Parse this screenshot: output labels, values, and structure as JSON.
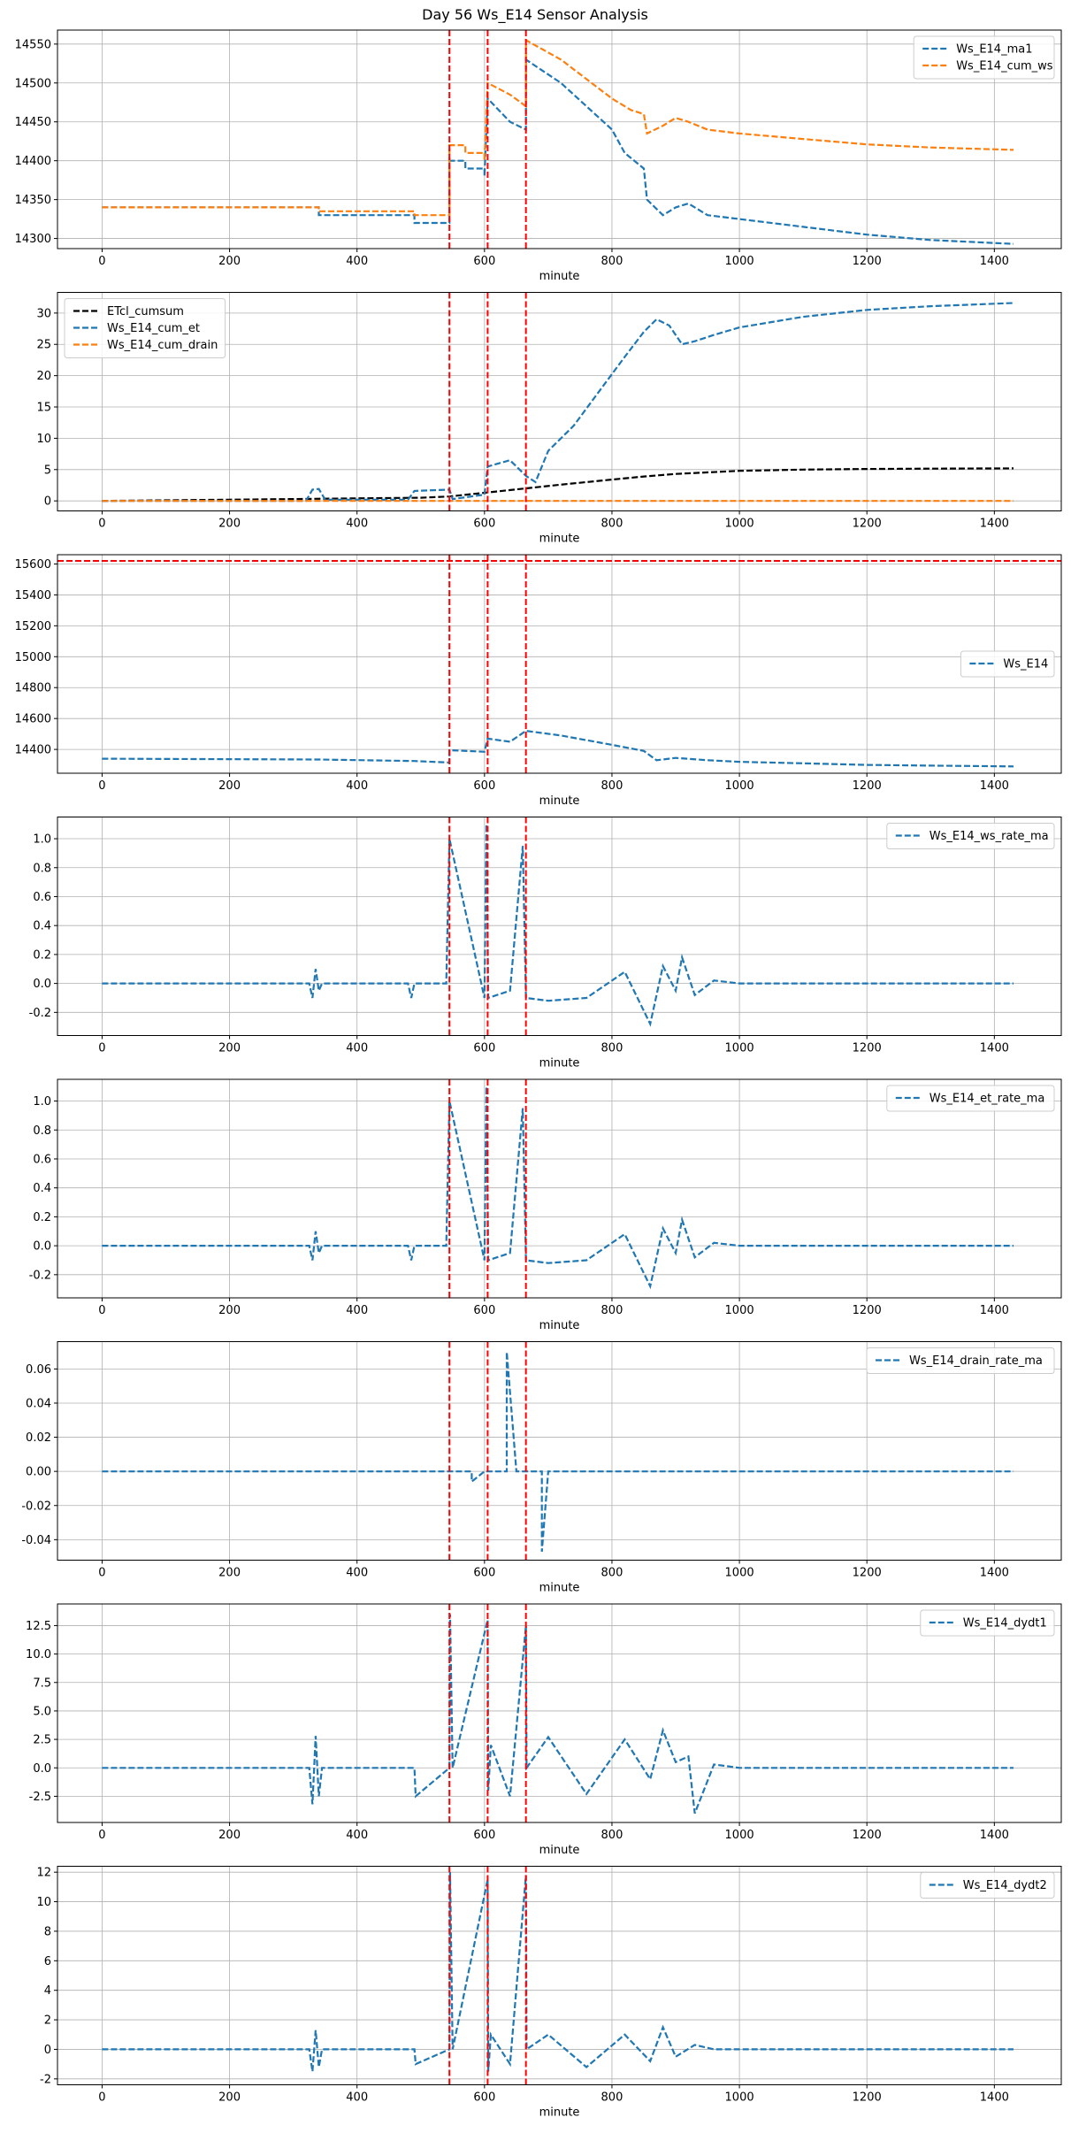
{
  "figure": {
    "title": "Day 56 Ws_E14 Sensor Analysis"
  },
  "colors": {
    "blue": "#1f77b4",
    "orange": "#ff7f0e",
    "black": "#000000",
    "red": "#ff0000",
    "grid": "#b0b0b0"
  },
  "chart_data": [
    {
      "type": "line",
      "title": "",
      "xlabel": "minute",
      "ylabel": "",
      "xlim": [
        -70,
        1505
      ],
      "ylim": [
        14287,
        14568
      ],
      "xticks": [
        0,
        200,
        400,
        600,
        800,
        1000,
        1200,
        1400
      ],
      "xtick_labels": [
        "0",
        "200",
        "400",
        "600",
        "800",
        "1000",
        "1200",
        "1400"
      ],
      "yticks": [
        14300,
        14350,
        14400,
        14450,
        14500,
        14550
      ],
      "ytick_labels": [
        "14300",
        "14350",
        "14400",
        "14450",
        "14500",
        "14550"
      ],
      "grid": true,
      "legend": {
        "position": "top-right",
        "labels": [
          "Ws_E14_ma1",
          "Ws_E14_cum_ws"
        ]
      },
      "vlines": [
        545,
        605,
        665
      ],
      "hlines": [],
      "series": [
        {
          "name": "Ws_E14_ma1",
          "color": "#1f77b4",
          "x": [
            0,
            340,
            340,
            490,
            490,
            545,
            545,
            570,
            570,
            600,
            600,
            605,
            605,
            640,
            665,
            665,
            720,
            760,
            800,
            820,
            850,
            855,
            880,
            900,
            920,
            950,
            1000,
            1100,
            1200,
            1300,
            1430
          ],
          "y": [
            14340,
            14340,
            14330,
            14330,
            14320,
            14320,
            14400,
            14400,
            14390,
            14390,
            14380,
            14480,
            14480,
            14450,
            14440,
            14530,
            14500,
            14470,
            14440,
            14410,
            14390,
            14350,
            14330,
            14340,
            14345,
            14330,
            14325,
            14315,
            14305,
            14298,
            14293
          ]
        },
        {
          "name": "Ws_E14_cum_ws",
          "color": "#ff7f0e",
          "x": [
            0,
            340,
            340,
            490,
            490,
            545,
            545,
            570,
            570,
            600,
            600,
            605,
            605,
            640,
            665,
            665,
            720,
            760,
            800,
            830,
            850,
            855,
            880,
            900,
            920,
            950,
            1000,
            1100,
            1200,
            1300,
            1430
          ],
          "y": [
            14340,
            14340,
            14335,
            14335,
            14330,
            14330,
            14420,
            14420,
            14410,
            14410,
            14400,
            14500,
            14500,
            14485,
            14470,
            14555,
            14530,
            14505,
            14480,
            14465,
            14460,
            14435,
            14445,
            14455,
            14450,
            14440,
            14435,
            14428,
            14421,
            14417,
            14414
          ]
        }
      ]
    },
    {
      "type": "line",
      "title": "",
      "xlabel": "minute",
      "ylabel": "",
      "xlim": [
        -70,
        1505
      ],
      "ylim": [
        -1.6,
        33.3
      ],
      "xticks": [
        0,
        200,
        400,
        600,
        800,
        1000,
        1200,
        1400
      ],
      "xtick_labels": [
        "0",
        "200",
        "400",
        "600",
        "800",
        "1000",
        "1200",
        "1400"
      ],
      "yticks": [
        0,
        5,
        10,
        15,
        20,
        25,
        30
      ],
      "ytick_labels": [
        "0",
        "5",
        "10",
        "15",
        "20",
        "25",
        "30"
      ],
      "grid": true,
      "legend": {
        "position": "top-left",
        "labels": [
          "ETcl_cumsum",
          "Ws_E14_cum_et",
          "Ws_E14_cum_drain"
        ]
      },
      "vlines": [
        545,
        605,
        665
      ],
      "hlines": [],
      "series": [
        {
          "name": "ETcl_cumsum",
          "color": "#000000",
          "x": [
            0,
            100,
            200,
            300,
            400,
            500,
            545,
            600,
            665,
            720,
            780,
            850,
            900,
            1000,
            1100,
            1200,
            1300,
            1430
          ],
          "y": [
            0,
            0.1,
            0.2,
            0.3,
            0.4,
            0.5,
            0.7,
            1.3,
            2.0,
            2.6,
            3.2,
            3.9,
            4.3,
            4.8,
            5.0,
            5.1,
            5.15,
            5.2
          ]
        },
        {
          "name": "Ws_E14_cum_et",
          "color": "#1f77b4",
          "x": [
            0,
            320,
            330,
            340,
            350,
            480,
            490,
            545,
            550,
            600,
            605,
            640,
            665,
            680,
            700,
            740,
            780,
            820,
            850,
            870,
            890,
            910,
            930,
            960,
            1000,
            1100,
            1200,
            1300,
            1430
          ],
          "y": [
            0,
            0,
            1.8,
            1.9,
            0.2,
            0.2,
            1.6,
            1.8,
            0.3,
            1.0,
            5.5,
            6.5,
            4.0,
            3.0,
            8.0,
            12.0,
            17.5,
            23.0,
            27.0,
            29.0,
            28.0,
            25.0,
            25.5,
            26.5,
            27.7,
            29.4,
            30.5,
            31.1,
            31.6
          ]
        },
        {
          "name": "Ws_E14_cum_drain",
          "color": "#ff7f0e",
          "x": [
            0,
            1430
          ],
          "y": [
            0,
            0
          ]
        }
      ]
    },
    {
      "type": "line",
      "title": "",
      "xlabel": "minute",
      "ylabel": "",
      "xlim": [
        -70,
        1505
      ],
      "ylim": [
        14246,
        15660
      ],
      "xticks": [
        0,
        200,
        400,
        600,
        800,
        1000,
        1200,
        1400
      ],
      "xtick_labels": [
        "0",
        "200",
        "400",
        "600",
        "800",
        "1000",
        "1200",
        "1400"
      ],
      "yticks": [
        14400,
        14600,
        14800,
        15000,
        15200,
        15400,
        15600
      ],
      "ytick_labels": [
        "14400",
        "14600",
        "14800",
        "15000",
        "15200",
        "15400",
        "15600"
      ],
      "grid": true,
      "legend": {
        "position": "center-right",
        "labels": [
          "Ws_E14"
        ]
      },
      "vlines": [
        545,
        605,
        665
      ],
      "hlines": [
        15620
      ],
      "series": [
        {
          "name": "Ws_E14",
          "color": "#1f77b4",
          "x": [
            0,
            340,
            490,
            545,
            545,
            600,
            605,
            640,
            665,
            720,
            800,
            850,
            870,
            900,
            950,
            1000,
            1100,
            1200,
            1300,
            1430
          ],
          "y": [
            14340,
            14335,
            14325,
            14315,
            14395,
            14385,
            14470,
            14450,
            14520,
            14490,
            14430,
            14390,
            14330,
            14345,
            14330,
            14320,
            14310,
            14300,
            14295,
            14290
          ]
        }
      ]
    },
    {
      "type": "line",
      "title": "",
      "xlabel": "minute",
      "ylabel": "",
      "xlim": [
        -70,
        1505
      ],
      "ylim": [
        -0.36,
        1.15
      ],
      "xticks": [
        0,
        200,
        400,
        600,
        800,
        1000,
        1200,
        1400
      ],
      "xtick_labels": [
        "0",
        "200",
        "400",
        "600",
        "800",
        "1000",
        "1200",
        "1400"
      ],
      "yticks": [
        -0.2,
        0.0,
        0.2,
        0.4,
        0.6,
        0.8,
        1.0
      ],
      "ytick_labels": [
        "-0.2",
        "0.0",
        "0.2",
        "0.4",
        "0.6",
        "0.8",
        "1.0"
      ],
      "grid": true,
      "legend": {
        "position": "top-right",
        "labels": [
          "Ws_E14_ws_rate_ma"
        ]
      },
      "vlines": [
        545,
        605,
        665
      ],
      "hlines": [],
      "series": [
        {
          "name": "Ws_E14_ws_rate_ma",
          "color": "#1f77b4",
          "x": [
            0,
            325,
            330,
            335,
            340,
            345,
            480,
            485,
            490,
            540,
            545,
            600,
            603,
            606,
            640,
            660,
            665,
            700,
            760,
            820,
            860,
            880,
            900,
            910,
            930,
            960,
            1000,
            1100,
            1200,
            1300,
            1430
          ],
          "y": [
            0,
            0,
            -0.1,
            0.1,
            -0.05,
            0,
            0,
            -0.1,
            0,
            0,
            1.0,
            -0.1,
            1.1,
            -0.1,
            -0.05,
            0.95,
            -0.1,
            -0.12,
            -0.1,
            0.08,
            -0.28,
            0.12,
            -0.05,
            0.18,
            -0.08,
            0.02,
            0,
            0,
            0,
            0,
            0
          ]
        }
      ]
    },
    {
      "type": "line",
      "title": "",
      "xlabel": "minute",
      "ylabel": "",
      "xlim": [
        -70,
        1505
      ],
      "ylim": [
        -0.36,
        1.15
      ],
      "xticks": [
        0,
        200,
        400,
        600,
        800,
        1000,
        1200,
        1400
      ],
      "xtick_labels": [
        "0",
        "200",
        "400",
        "600",
        "800",
        "1000",
        "1200",
        "1400"
      ],
      "yticks": [
        -0.2,
        0.0,
        0.2,
        0.4,
        0.6,
        0.8,
        1.0
      ],
      "ytick_labels": [
        "-0.2",
        "0.0",
        "0.2",
        "0.4",
        "0.6",
        "0.8",
        "1.0"
      ],
      "grid": true,
      "legend": {
        "position": "top-right",
        "labels": [
          "Ws_E14_et_rate_ma"
        ]
      },
      "vlines": [
        545,
        605,
        665
      ],
      "hlines": [],
      "series": [
        {
          "name": "Ws_E14_et_rate_ma",
          "color": "#1f77b4",
          "x": [
            0,
            325,
            330,
            335,
            340,
            345,
            480,
            485,
            490,
            540,
            545,
            600,
            603,
            606,
            640,
            660,
            665,
            700,
            760,
            820,
            860,
            880,
            900,
            910,
            930,
            960,
            1000,
            1100,
            1200,
            1300,
            1430
          ],
          "y": [
            0,
            0,
            -0.1,
            0.1,
            -0.05,
            0,
            0,
            -0.1,
            0,
            0,
            1.0,
            -0.1,
            1.1,
            -0.1,
            -0.05,
            0.95,
            -0.1,
            -0.12,
            -0.1,
            0.08,
            -0.28,
            0.12,
            -0.05,
            0.18,
            -0.08,
            0.02,
            0,
            0,
            0,
            0,
            0
          ]
        }
      ]
    },
    {
      "type": "line",
      "title": "",
      "xlabel": "minute",
      "ylabel": "",
      "xlim": [
        -70,
        1505
      ],
      "ylim": [
        -0.052,
        0.076
      ],
      "xticks": [
        0,
        200,
        400,
        600,
        800,
        1000,
        1200,
        1400
      ],
      "xtick_labels": [
        "0",
        "200",
        "400",
        "600",
        "800",
        "1000",
        "1200",
        "1400"
      ],
      "yticks": [
        -0.04,
        -0.02,
        0.0,
        0.02,
        0.04,
        0.06
      ],
      "ytick_labels": [
        "-0.04",
        "-0.02",
        "0.00",
        "0.02",
        "0.04",
        "0.06"
      ],
      "grid": true,
      "legend": {
        "position": "top-right",
        "labels": [
          "Ws_E14_drain_rate_ma"
        ]
      },
      "vlines": [
        545,
        605,
        665
      ],
      "hlines": [],
      "series": [
        {
          "name": "Ws_E14_drain_rate_ma",
          "color": "#1f77b4",
          "x": [
            0,
            540,
            580,
            580,
            600,
            635,
            635,
            650,
            690,
            690,
            700,
            1430
          ],
          "y": [
            0,
            0,
            0,
            -0.006,
            0,
            0,
            0.07,
            0,
            0,
            -0.047,
            0,
            0
          ]
        }
      ]
    },
    {
      "type": "line",
      "title": "",
      "xlabel": "minute",
      "ylabel": "",
      "xlim": [
        -70,
        1505
      ],
      "ylim": [
        -4.8,
        14.4
      ],
      "xticks": [
        0,
        200,
        400,
        600,
        800,
        1000,
        1200,
        1400
      ],
      "xtick_labels": [
        "0",
        "200",
        "400",
        "600",
        "800",
        "1000",
        "1200",
        "1400"
      ],
      "yticks": [
        -2.5,
        0.0,
        2.5,
        5.0,
        7.5,
        10.0,
        12.5
      ],
      "ytick_labels": [
        "-2.5",
        "0.0",
        "2.5",
        "5.0",
        "7.5",
        "10.0",
        "12.5"
      ],
      "grid": true,
      "legend": {
        "position": "top-right",
        "labels": [
          "Ws_E14_dydt1"
        ]
      },
      "vlines": [
        545,
        605,
        665
      ],
      "hlines": [],
      "series": [
        {
          "name": "Ws_E14_dydt1",
          "color": "#1f77b4",
          "x": [
            0,
            325,
            330,
            335,
            340,
            345,
            490,
            492,
            545,
            546,
            550,
            605,
            606,
            610,
            640,
            665,
            666,
            700,
            760,
            820,
            860,
            880,
            900,
            920,
            930,
            960,
            1000,
            1100,
            1200,
            1300,
            1430
          ],
          "y": [
            0,
            0,
            -3.2,
            2.8,
            -2.5,
            0,
            0,
            -2.5,
            0,
            13.5,
            0,
            13.0,
            -2.0,
            2.0,
            -2.5,
            12.5,
            0,
            2.7,
            -2.3,
            2.5,
            -1.0,
            3.3,
            0.5,
            1.0,
            -4.0,
            0.3,
            0,
            0,
            0,
            0,
            0
          ]
        }
      ]
    },
    {
      "type": "line",
      "title": "",
      "xlabel": "minute",
      "ylabel": "",
      "xlim": [
        -70,
        1505
      ],
      "ylim": [
        -2.4,
        12.4
      ],
      "xticks": [
        0,
        200,
        400,
        600,
        800,
        1000,
        1200,
        1400
      ],
      "xtick_labels": [
        "0",
        "200",
        "400",
        "600",
        "800",
        "1000",
        "1200",
        "1400"
      ],
      "yticks": [
        -2,
        0,
        2,
        4,
        6,
        8,
        10,
        12
      ],
      "ytick_labels": [
        "-2",
        "0",
        "2",
        "4",
        "6",
        "8",
        "10",
        "12"
      ],
      "grid": true,
      "legend": {
        "position": "top-right",
        "labels": [
          "Ws_E14_dydt2"
        ]
      },
      "vlines": [
        545,
        605,
        665
      ],
      "hlines": [],
      "series": [
        {
          "name": "Ws_E14_dydt2",
          "color": "#1f77b4",
          "x": [
            0,
            325,
            330,
            335,
            340,
            345,
            490,
            492,
            545,
            546,
            550,
            605,
            606,
            610,
            640,
            665,
            666,
            700,
            760,
            820,
            860,
            880,
            900,
            930,
            960,
            1000,
            1100,
            1200,
            1300,
            1430
          ],
          "y": [
            0,
            0,
            -1.5,
            1.3,
            -1.2,
            0,
            0,
            -1.0,
            0,
            12.0,
            0,
            11.5,
            -1.5,
            1.0,
            -1.0,
            11.8,
            0,
            1.0,
            -1.2,
            1.0,
            -0.8,
            1.5,
            -0.5,
            0.3,
            0,
            0,
            0,
            0,
            0,
            0
          ]
        }
      ]
    }
  ]
}
